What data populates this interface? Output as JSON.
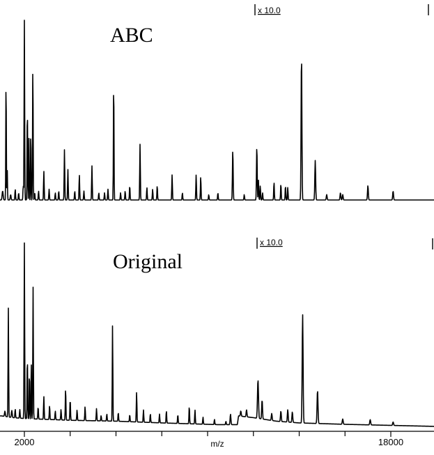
{
  "chart_data": {
    "type": "line",
    "xlabel": "m/z",
    "xlim": [
      1000,
      20000
    ],
    "x_tick_labels": [
      {
        "x": 2000,
        "label": "2000"
      },
      {
        "x": 18000,
        "label": "18000"
      }
    ],
    "x_minor_ticks": [
      4000,
      6000,
      8000,
      10000,
      12000,
      14000,
      16000
    ],
    "series": [
      {
        "name": "ABC",
        "magnification_label": "x 10.0",
        "baseline": [
          [
            1000,
            0
          ],
          [
            20000,
            0
          ]
        ],
        "peaks": [
          [
            1050,
            0.05,
            50
          ],
          [
            1200,
            0.7,
            25
          ],
          [
            1250,
            0.18,
            25
          ],
          [
            1400,
            0.03,
            40
          ],
          [
            1600,
            0.06,
            30
          ],
          [
            1750,
            0.04,
            30
          ],
          [
            1950,
            0.08,
            30
          ],
          [
            2000,
            1.0,
            28
          ],
          [
            2130,
            0.52,
            28
          ],
          [
            2200,
            0.35,
            25
          ],
          [
            2280,
            0.4,
            25
          ],
          [
            2370,
            0.76,
            28
          ],
          [
            2450,
            0.04,
            30
          ],
          [
            2620,
            0.05,
            30
          ],
          [
            2850,
            0.16,
            30
          ],
          [
            3080,
            0.06,
            30
          ],
          [
            3350,
            0.04,
            30
          ],
          [
            3500,
            0.05,
            30
          ],
          [
            3750,
            0.28,
            30
          ],
          [
            3900,
            0.17,
            30
          ],
          [
            4200,
            0.05,
            30
          ],
          [
            4400,
            0.14,
            30
          ],
          [
            4600,
            0.05,
            30
          ],
          [
            4950,
            0.19,
            30
          ],
          [
            5250,
            0.04,
            30
          ],
          [
            5500,
            0.04,
            30
          ],
          [
            5650,
            0.06,
            30
          ],
          [
            5900,
            0.67,
            28
          ],
          [
            6200,
            0.04,
            30
          ],
          [
            6400,
            0.05,
            30
          ],
          [
            6600,
            0.08,
            30
          ],
          [
            7050,
            0.31,
            30
          ],
          [
            7350,
            0.07,
            30
          ],
          [
            7600,
            0.06,
            30
          ],
          [
            7800,
            0.08,
            30
          ],
          [
            8450,
            0.14,
            30
          ],
          [
            8900,
            0.04,
            30
          ],
          [
            9500,
            0.14,
            30
          ],
          [
            9700,
            0.13,
            30
          ],
          [
            10050,
            0.03,
            30
          ],
          [
            10450,
            0.04,
            30
          ],
          [
            11100,
            0.28,
            35
          ],
          [
            11600,
            0.03,
            30
          ],
          [
            12150,
            0.3,
            35
          ],
          [
            12220,
            0.11,
            30
          ],
          [
            12300,
            0.08,
            30
          ],
          [
            12400,
            0.04,
            30
          ],
          [
            12900,
            0.1,
            30
          ],
          [
            13200,
            0.09,
            30
          ],
          [
            13400,
            0.08,
            30
          ],
          [
            13500,
            0.07,
            30
          ],
          [
            14100,
            0.81,
            40
          ],
          [
            14700,
            0.22,
            40
          ],
          [
            15200,
            0.03,
            40
          ],
          [
            15800,
            0.04,
            40
          ],
          [
            15900,
            0.03,
            40
          ],
          [
            17000,
            0.08,
            40
          ],
          [
            18100,
            0.05,
            40
          ]
        ]
      },
      {
        "name": "Original",
        "magnification_label": "x 10.0",
        "baseline": [
          [
            1000,
            0.06
          ],
          [
            1500,
            0.05
          ],
          [
            2000,
            0.045
          ],
          [
            3000,
            0.04
          ],
          [
            4000,
            0.035
          ],
          [
            6000,
            0.03
          ],
          [
            8000,
            0.02
          ],
          [
            10500,
            0.01
          ],
          [
            11300,
            0.01
          ],
          [
            11350,
            0.06
          ],
          [
            12000,
            0.05
          ],
          [
            13000,
            0.03
          ],
          [
            14000,
            0.02
          ],
          [
            16000,
            0.012
          ],
          [
            18000,
            0.006
          ],
          [
            20000,
            0.0
          ]
        ],
        "peaks": [
          [
            1150,
            0.03,
            40
          ],
          [
            1300,
            0.62,
            28
          ],
          [
            1450,
            0.04,
            40
          ],
          [
            1600,
            0.05,
            30
          ],
          [
            1800,
            0.05,
            30
          ],
          [
            2000,
            1.0,
            28
          ],
          [
            2130,
            0.36,
            28
          ],
          [
            2220,
            0.28,
            25
          ],
          [
            2300,
            0.33,
            25
          ],
          [
            2380,
            0.75,
            28
          ],
          [
            2600,
            0.07,
            30
          ],
          [
            2850,
            0.13,
            30
          ],
          [
            3100,
            0.08,
            30
          ],
          [
            3350,
            0.05,
            30
          ],
          [
            3600,
            0.06,
            30
          ],
          [
            3800,
            0.18,
            30
          ],
          [
            4000,
            0.12,
            30
          ],
          [
            4300,
            0.06,
            30
          ],
          [
            4650,
            0.08,
            30
          ],
          [
            5150,
            0.07,
            30
          ],
          [
            5350,
            0.03,
            30
          ],
          [
            5600,
            0.04,
            30
          ],
          [
            5850,
            0.55,
            28
          ],
          [
            6100,
            0.05,
            30
          ],
          [
            6600,
            0.04,
            30
          ],
          [
            6900,
            0.17,
            30
          ],
          [
            7200,
            0.07,
            30
          ],
          [
            7500,
            0.05,
            30
          ],
          [
            7900,
            0.05,
            30
          ],
          [
            8200,
            0.07,
            30
          ],
          [
            8700,
            0.05,
            30
          ],
          [
            9200,
            0.1,
            30
          ],
          [
            9450,
            0.08,
            30
          ],
          [
            9800,
            0.04,
            30
          ],
          [
            10300,
            0.03,
            30
          ],
          [
            10800,
            0.02,
            30
          ],
          [
            11000,
            0.06,
            40
          ],
          [
            11450,
            0.03,
            40
          ],
          [
            11700,
            0.04,
            40
          ],
          [
            12200,
            0.22,
            50
          ],
          [
            12380,
            0.11,
            40
          ],
          [
            12800,
            0.04,
            40
          ],
          [
            13200,
            0.06,
            40
          ],
          [
            13500,
            0.07,
            40
          ],
          [
            13700,
            0.06,
            40
          ],
          [
            14150,
            0.62,
            45
          ],
          [
            14800,
            0.19,
            45
          ],
          [
            15900,
            0.03,
            45
          ],
          [
            17100,
            0.03,
            45
          ],
          [
            18100,
            0.02,
            45
          ]
        ]
      }
    ]
  }
}
